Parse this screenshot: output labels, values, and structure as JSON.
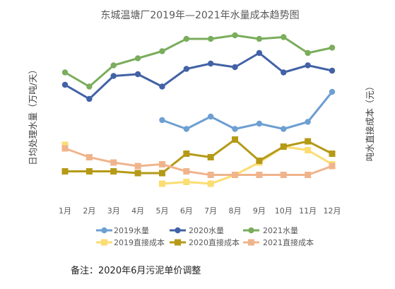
{
  "chart_data": {
    "type": "line",
    "title": "东城温塘厂2019年—2021年水量成本趋势图",
    "xlabel": "",
    "ylabel": "日均处理水量（万吨/天）",
    "y2label": "吨水直接成本（元）",
    "categories": [
      "1月",
      "2月",
      "3月",
      "4月",
      "5月",
      "6月",
      "7月",
      "8月",
      "9月",
      "10月",
      "11月",
      "12月"
    ],
    "ylim": [
      0,
      100
    ],
    "grid": false,
    "legend_position": "bottom",
    "series": [
      {
        "name": "2019水量",
        "axis": "left",
        "marker": "circle",
        "color": "#6d9fd1",
        "values": [
          null,
          null,
          null,
          null,
          46,
          41,
          48,
          41,
          44,
          41,
          45,
          62
        ]
      },
      {
        "name": "2020水量",
        "axis": "left",
        "marker": "circle",
        "color": "#4262a6",
        "values": [
          66,
          58,
          71,
          72,
          65,
          75,
          78,
          76,
          84,
          73,
          77,
          74
        ]
      },
      {
        "name": "2021水量",
        "axis": "left",
        "marker": "circle",
        "color": "#7aad5c",
        "values": [
          73,
          65,
          77,
          81,
          85,
          92,
          92,
          94,
          92,
          93,
          84,
          87
        ]
      },
      {
        "name": "2019直接成本",
        "axis": "right",
        "marker": "square",
        "color": "#fbdd72",
        "values": [
          32,
          null,
          null,
          null,
          10,
          11,
          10,
          15,
          22,
          31,
          29,
          21
        ]
      },
      {
        "name": "2020直接成本",
        "axis": "right",
        "marker": "square",
        "color": "#b59a17",
        "values": [
          17,
          17,
          17,
          16,
          16,
          27,
          25,
          35,
          23,
          31,
          34,
          27
        ]
      },
      {
        "name": "2021直接成本",
        "axis": "right",
        "marker": "square",
        "color": "#f0b48c",
        "values": [
          30,
          25,
          22,
          20,
          21,
          17,
          15,
          15,
          15,
          15,
          15,
          20
        ]
      }
    ]
  },
  "note": "备注：2020年6月污泥单价调整"
}
